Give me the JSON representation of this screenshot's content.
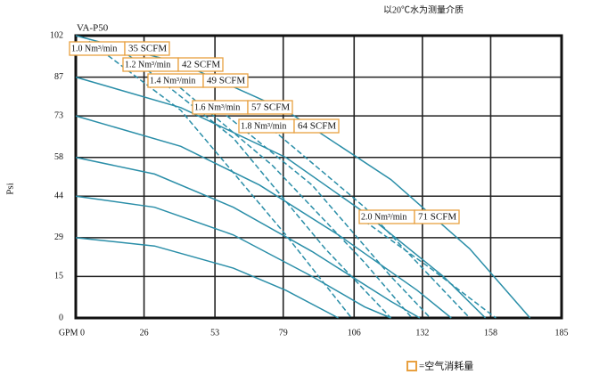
{
  "chart_data": {
    "type": "line",
    "title": "VA-P50",
    "subtitle": "以20℃水为测量介质",
    "ylabel": "Psi",
    "legend_note": "=空气消耗量",
    "xlim": [
      0,
      185
    ],
    "xticks": [
      {
        "value": 0,
        "label": "GPM 0"
      },
      26,
      53,
      79,
      106,
      132,
      158,
      185
    ],
    "ylim": [
      0,
      102
    ],
    "yticks": [
      0,
      15,
      29,
      44,
      58,
      73,
      87,
      102
    ],
    "grid": true,
    "color": "#2a8ea8",
    "box_color": "#e8a040",
    "series": [
      {
        "style": "solid",
        "x": [
          0,
          40,
          80,
          120,
          150,
          173
        ],
        "values": [
          102,
          92,
          75,
          50,
          25,
          0
        ]
      },
      {
        "style": "solid",
        "x": [
          0,
          40,
          80,
          110,
          140,
          156
        ],
        "values": [
          87,
          76,
          58,
          38,
          15,
          0
        ]
      },
      {
        "style": "solid",
        "x": [
          0,
          40,
          70,
          100,
          130,
          143
        ],
        "values": [
          73,
          62,
          48,
          30,
          10,
          0
        ]
      },
      {
        "style": "solid",
        "x": [
          0,
          30,
          60,
          90,
          120,
          131
        ],
        "values": [
          58,
          52,
          40,
          24,
          6,
          0
        ]
      },
      {
        "style": "solid",
        "x": [
          0,
          30,
          60,
          90,
          110,
          120
        ],
        "values": [
          44,
          40,
          30,
          15,
          4,
          0
        ]
      },
      {
        "style": "solid",
        "x": [
          0,
          30,
          60,
          80,
          100
        ],
        "values": [
          29,
          26,
          18,
          10,
          0
        ]
      },
      {
        "style": "dashed",
        "x": [
          5,
          40,
          80,
          105
        ],
        "values": [
          100,
          75,
          30,
          0
        ]
      },
      {
        "style": "dashed",
        "x": [
          20,
          60,
          95,
          120
        ],
        "values": [
          95,
          65,
          25,
          0
        ]
      },
      {
        "style": "dashed",
        "x": [
          35,
          75,
          110,
          128
        ],
        "values": [
          87,
          55,
          20,
          0
        ]
      },
      {
        "style": "dashed",
        "x": [
          55,
          90,
          120,
          135
        ],
        "values": [
          75,
          48,
          15,
          0
        ]
      },
      {
        "style": "dashed",
        "x": [
          75,
          110,
          140,
          150
        ],
        "values": [
          68,
          40,
          10,
          0
        ]
      },
      {
        "style": "dashed",
        "x": [
          110,
          135,
          160
        ],
        "values": [
          35,
          18,
          0
        ]
      }
    ],
    "annotations": [
      {
        "flow": "1.0 Nm³/min",
        "scfm": "35 SCFM"
      },
      {
        "flow": "1.2 Nm³/min",
        "scfm": "42 SCFM"
      },
      {
        "flow": "1.4 Nm³/min",
        "scfm": "49 SCFM"
      },
      {
        "flow": "1.6 Nm³/min",
        "scfm": "57 SCFM"
      },
      {
        "flow": "1.8 Nm³/min",
        "scfm": "64 SCFM"
      },
      {
        "flow": "2.0 Nm³/min",
        "scfm": "71 SCFM"
      }
    ]
  }
}
